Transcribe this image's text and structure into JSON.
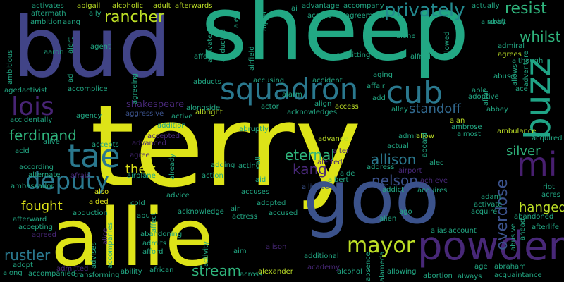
{
  "words": [
    {
      "text": "terry",
      "color": "#dde318"
    },
    {
      "text": "sheep",
      "color": "#22a884"
    },
    {
      "text": "bud",
      "color": "#414487"
    },
    {
      "text": "allie",
      "color": "#dde318"
    },
    {
      "text": "goo",
      "color": "#3b528b"
    },
    {
      "text": "powder",
      "color": "#482878"
    },
    {
      "text": "squadron",
      "color": "#2a788e"
    },
    {
      "text": "cub",
      "color": "#2a788e"
    },
    {
      "text": "buzz",
      "color": "#20a486"
    },
    {
      "text": "mi",
      "color": "#481f70"
    },
    {
      "text": "tae",
      "color": "#2a788e"
    },
    {
      "text": "lois",
      "color": "#482475"
    },
    {
      "text": "deputy",
      "color": "#2a788e"
    },
    {
      "text": "mayor",
      "color": "#bddf26"
    },
    {
      "text": "privately",
      "color": "#23898e"
    },
    {
      "text": "rancher",
      "color": "#bddf26"
    },
    {
      "text": "resist",
      "color": "#2fb47c"
    },
    {
      "text": "whilst",
      "color": "#2fb47c"
    },
    {
      "text": "standoff",
      "color": "#31688e"
    },
    {
      "text": "ferdinand",
      "color": "#2fb47c"
    },
    {
      "text": "eternal",
      "color": "#2fb47c"
    },
    {
      "text": "allison",
      "color": "#2a788e"
    },
    {
      "text": "kang",
      "color": "#482878"
    },
    {
      "text": "nelson",
      "color": "#3b528b"
    },
    {
      "text": "silver",
      "color": "#2fb47c"
    },
    {
      "text": "overdose",
      "color": "#3b528b"
    },
    {
      "text": "hanged",
      "color": "#bddf26"
    },
    {
      "text": "fought",
      "color": "#dde318"
    },
    {
      "text": "stream",
      "color": "#2fb47c"
    },
    {
      "text": "rustler",
      "color": "#2a788e"
    },
    {
      "text": "theft",
      "color": "#dde318"
    },
    {
      "text": "shakespeare",
      "color": "#482878"
    },
    {
      "text": "aggressive",
      "color": "#3b528b"
    },
    {
      "text": "abigail",
      "color": "#bddf26"
    },
    {
      "text": "alcoholic",
      "color": "#bddf26"
    },
    {
      "text": "adult",
      "color": "#bddf26"
    },
    {
      "text": "afterwards",
      "color": "#bddf26"
    },
    {
      "text": "activates",
      "color": "#22a884"
    },
    {
      "text": "aftermath",
      "color": "#22a884"
    },
    {
      "text": "ally",
      "color": "#22a884"
    },
    {
      "text": "ambition",
      "color": "#22a884"
    },
    {
      "text": "aang",
      "color": "#22a884"
    },
    {
      "text": "ai",
      "color": "#22a884"
    },
    {
      "text": "advantage",
      "color": "#22a884"
    },
    {
      "text": "accept",
      "color": "#22a884"
    },
    {
      "text": "accompany",
      "color": "#22a884"
    },
    {
      "text": "agreement",
      "color": "#22a884"
    },
    {
      "text": "actually",
      "color": "#22a884"
    },
    {
      "text": "abby",
      "color": "#22a884"
    },
    {
      "text": "aircraft",
      "color": "#22a884"
    },
    {
      "text": "admiral",
      "color": "#22a884"
    },
    {
      "text": "agrees",
      "color": "#bddf26"
    },
    {
      "text": "alone",
      "color": "#22a884"
    },
    {
      "text": "alfred",
      "color": "#22a884"
    },
    {
      "text": "admitting",
      "color": "#22a884"
    },
    {
      "text": "affection",
      "color": "#22a884"
    },
    {
      "text": "aaron",
      "color": "#22a884"
    },
    {
      "text": "agent",
      "color": "#22a884"
    },
    {
      "text": "aged",
      "color": "#22a884"
    },
    {
      "text": "activist",
      "color": "#22a884"
    },
    {
      "text": "accomplice",
      "color": "#22a884"
    },
    {
      "text": "abducts",
      "color": "#22a884"
    },
    {
      "text": "accusing",
      "color": "#22a884"
    },
    {
      "text": "alarm",
      "color": "#22a884"
    },
    {
      "text": "accident",
      "color": "#22a884"
    },
    {
      "text": "aging",
      "color": "#22a884"
    },
    {
      "text": "affair",
      "color": "#22a884"
    },
    {
      "text": "able",
      "color": "#22a884"
    },
    {
      "text": "adoptive",
      "color": "#22a884"
    },
    {
      "text": "abuse",
      "color": "#22a884"
    },
    {
      "text": "ace",
      "color": "#22a884"
    },
    {
      "text": "alongside",
      "color": "#22a884"
    },
    {
      "text": "actor",
      "color": "#22a884"
    },
    {
      "text": "align",
      "color": "#22a884"
    },
    {
      "text": "access",
      "color": "#bddf26"
    },
    {
      "text": "acknowledges",
      "color": "#22a884"
    },
    {
      "text": "add",
      "color": "#22a884"
    },
    {
      "text": "alley",
      "color": "#22a884"
    },
    {
      "text": "abbey",
      "color": "#22a884"
    },
    {
      "text": "albright",
      "color": "#bddf26"
    },
    {
      "text": "alan",
      "color": "#bddf26"
    },
    {
      "text": "ambrose",
      "color": "#22a884"
    },
    {
      "text": "almost",
      "color": "#22a884"
    },
    {
      "text": "ambulance",
      "color": "#bddf26"
    },
    {
      "text": "acquired",
      "color": "#22a884"
    },
    {
      "text": "agency",
      "color": "#22a884"
    },
    {
      "text": "active",
      "color": "#22a884"
    },
    {
      "text": "addition",
      "color": "#22a884"
    },
    {
      "text": "accidentally",
      "color": "#22a884"
    },
    {
      "text": "alive",
      "color": "#22a884"
    },
    {
      "text": "abruptly",
      "color": "#22a884"
    },
    {
      "text": "advance",
      "color": "#bddf26"
    },
    {
      "text": "admit",
      "color": "#22a884"
    },
    {
      "text": "allow",
      "color": "#bddf26"
    },
    {
      "text": "accepted",
      "color": "#482878"
    },
    {
      "text": "advanced",
      "color": "#482878"
    },
    {
      "text": "acid",
      "color": "#22a884"
    },
    {
      "text": "accepts",
      "color": "#22a884"
    },
    {
      "text": "agree",
      "color": "#482878"
    },
    {
      "text": "actual",
      "color": "#22a884"
    },
    {
      "text": "according",
      "color": "#22a884"
    },
    {
      "text": "alternate",
      "color": "#22a884"
    },
    {
      "text": "afraid",
      "color": "#482878"
    },
    {
      "text": "alter",
      "color": "#482878"
    },
    {
      "text": "alerted",
      "color": "#482878"
    },
    {
      "text": "albert",
      "color": "#22a884"
    },
    {
      "text": "aide",
      "color": "#22a884"
    },
    {
      "text": "address",
      "color": "#22a884"
    },
    {
      "text": "airport",
      "color": "#482878"
    },
    {
      "text": "alec",
      "color": "#22a884"
    },
    {
      "text": "achieve",
      "color": "#482878"
    },
    {
      "text": "alliance",
      "color": "#3b528b"
    },
    {
      "text": "addict",
      "color": "#22a884"
    },
    {
      "text": "acquires",
      "color": "#22a884"
    },
    {
      "text": "adam",
      "color": "#22a884"
    },
    {
      "text": "riot",
      "color": "#22a884"
    },
    {
      "text": "acres",
      "color": "#22a884"
    },
    {
      "text": "adding",
      "color": "#22a884"
    },
    {
      "text": "acting",
      "color": "#22a884"
    },
    {
      "text": "action",
      "color": "#22a884"
    },
    {
      "text": "airplane",
      "color": "#22a884"
    },
    {
      "text": "aid",
      "color": "#22a884"
    },
    {
      "text": "accuses",
      "color": "#22a884"
    },
    {
      "text": "also",
      "color": "#dde318"
    },
    {
      "text": "aided",
      "color": "#dde318"
    },
    {
      "text": "cold",
      "color": "#22a884"
    },
    {
      "text": "advice",
      "color": "#22a884"
    },
    {
      "text": "activate",
      "color": "#22a884"
    },
    {
      "text": "abduction",
      "color": "#22a884"
    },
    {
      "text": "abu",
      "color": "#22a884"
    },
    {
      "text": "air",
      "color": "#22a884"
    },
    {
      "text": "adopted",
      "color": "#22a884"
    },
    {
      "text": "accused",
      "color": "#22a884"
    },
    {
      "text": "acknowledge",
      "color": "#22a884"
    },
    {
      "text": "actress",
      "color": "#22a884"
    },
    {
      "text": "ago",
      "color": "#22a884"
    },
    {
      "text": "acquire",
      "color": "#22a884"
    },
    {
      "text": "abandoned",
      "color": "#22a884"
    },
    {
      "text": "afterlife",
      "color": "#22a884"
    },
    {
      "text": "afterward",
      "color": "#22a884"
    },
    {
      "text": "accepting",
      "color": "#22a884"
    },
    {
      "text": "agreed",
      "color": "#482878"
    },
    {
      "text": "advises",
      "color": "#22a884"
    },
    {
      "text": "accompanies",
      "color": "#22a884"
    },
    {
      "text": "abandoning",
      "color": "#22a884"
    },
    {
      "text": "admits",
      "color": "#22a884"
    },
    {
      "text": "alien",
      "color": "#22a884"
    },
    {
      "text": "alias",
      "color": "#22a884"
    },
    {
      "text": "account",
      "color": "#22a884"
    },
    {
      "text": "afford",
      "color": "#22a884"
    },
    {
      "text": "aim",
      "color": "#22a884"
    },
    {
      "text": "alison",
      "color": "#482878"
    },
    {
      "text": "additional",
      "color": "#22a884"
    },
    {
      "text": "adopt",
      "color": "#22a884"
    },
    {
      "text": "along",
      "color": "#22a884"
    },
    {
      "text": "accompanied",
      "color": "#22a884"
    },
    {
      "text": "admitted",
      "color": "#482878"
    },
    {
      "text": "transforming",
      "color": "#22a884"
    },
    {
      "text": "ability",
      "color": "#22a884"
    },
    {
      "text": "african",
      "color": "#22a884"
    },
    {
      "text": "across",
      "color": "#22a884"
    },
    {
      "text": "alexander",
      "color": "#bddf26"
    },
    {
      "text": "academy",
      "color": "#482878"
    },
    {
      "text": "alcohol",
      "color": "#22a884"
    },
    {
      "text": "allowing",
      "color": "#22a884"
    },
    {
      "text": "abortion",
      "color": "#22a884"
    },
    {
      "text": "always",
      "color": "#22a884"
    },
    {
      "text": "abraham",
      "color": "#22a884"
    },
    {
      "text": "acquaintance",
      "color": "#22a884"
    },
    {
      "text": "age",
      "color": "#22a884"
    },
    {
      "text": "alex",
      "color": "#22a884"
    },
    {
      "text": "alpha",
      "color": "#22a884"
    },
    {
      "text": "airfield",
      "color": "#22a884"
    },
    {
      "text": "abducted",
      "color": "#22a884"
    },
    {
      "text": "activated",
      "color": "#22a884"
    },
    {
      "text": "alert",
      "color": "#22a884"
    },
    {
      "text": "agreeing",
      "color": "#22a884"
    },
    {
      "text": "ambitious",
      "color": "#22a884"
    },
    {
      "text": "ambassador",
      "color": "#22a884"
    },
    {
      "text": "allowed",
      "color": "#22a884"
    },
    {
      "text": "although",
      "color": "#22a884"
    },
    {
      "text": "adventure",
      "color": "#22a884"
    },
    {
      "text": "allows",
      "color": "#22a884"
    },
    {
      "text": "altar",
      "color": "#22a884"
    },
    {
      "text": "abusive",
      "color": "#22a884"
    },
    {
      "text": "ahead",
      "color": "#22a884"
    },
    {
      "text": "aboard",
      "color": "#22a884"
    },
    {
      "text": "affect",
      "color": "#22a884"
    },
    {
      "text": "already",
      "color": "#22a884"
    },
    {
      "text": "all",
      "color": "#22a884"
    },
    {
      "text": "activity",
      "color": "#22a884"
    },
    {
      "text": "absence",
      "color": "#22a884"
    },
    {
      "text": "alameda",
      "color": "#22a884"
    },
    {
      "text": "ad",
      "color": "#22a884"
    },
    {
      "text": "alice",
      "color": "#482878"
    }
  ]
}
